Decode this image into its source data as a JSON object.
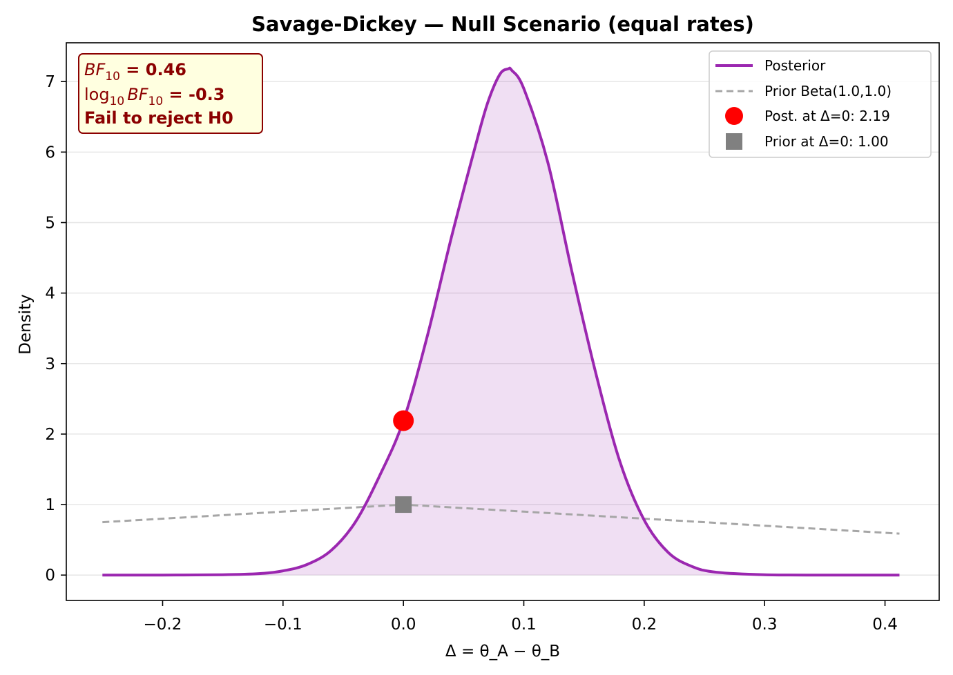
{
  "chart_data": {
    "type": "line",
    "title": "Savage-Dickey — Null Scenario (equal rates)",
    "xlabel": "Δ = θ_A − θ_B",
    "ylabel": "Density",
    "xlim": [
      -0.28,
      0.445
    ],
    "ylim": [
      -0.36,
      7.55
    ],
    "x_ticks": [
      -0.2,
      -0.1,
      0.0,
      0.1,
      0.2,
      0.3,
      0.4
    ],
    "x_tick_labels": [
      "−0.2",
      "−0.1",
      "0.0",
      "0.1",
      "0.2",
      "0.3",
      "0.4"
    ],
    "y_ticks": [
      0,
      1,
      2,
      3,
      4,
      5,
      6,
      7
    ],
    "y_tick_labels": [
      "0",
      "1",
      "2",
      "3",
      "4",
      "5",
      "6",
      "7"
    ],
    "grid": "horizontal",
    "legend_position": "top-right",
    "series": [
      {
        "name": "Posterior",
        "color": "#9b27b0",
        "style": "solid-filled",
        "x": [
          -0.25,
          -0.2,
          -0.15,
          -0.12,
          -0.1,
          -0.08,
          -0.06,
          -0.04,
          -0.02,
          0.0,
          0.02,
          0.04,
          0.06,
          0.07,
          0.08,
          0.087,
          0.09,
          0.1,
          0.12,
          0.14,
          0.16,
          0.18,
          0.2,
          0.22,
          0.24,
          0.26,
          0.3,
          0.35,
          0.412
        ],
        "y": [
          0.0,
          0.0,
          0.005,
          0.02,
          0.06,
          0.15,
          0.35,
          0.75,
          1.4,
          2.19,
          3.4,
          4.8,
          6.1,
          6.7,
          7.1,
          7.18,
          7.16,
          6.9,
          5.85,
          4.3,
          2.85,
          1.6,
          0.78,
          0.32,
          0.12,
          0.04,
          0.005,
          0.0,
          0.0
        ]
      },
      {
        "name": "Prior Beta(1.0,1.0)",
        "color": "#a6a6a6",
        "style": "dashed",
        "x": [
          -0.25,
          -0.2,
          -0.1,
          0.0,
          0.1,
          0.2,
          0.3,
          0.412
        ],
        "y": [
          0.75,
          0.8,
          0.9,
          1.0,
          0.9,
          0.8,
          0.7,
          0.588
        ]
      }
    ],
    "points": [
      {
        "name": "Post. at Δ=0: 2.19",
        "x": 0.0,
        "y": 2.19,
        "color": "#ff0000",
        "marker": "circle"
      },
      {
        "name": "Prior at Δ=0: 1.00",
        "x": 0.0,
        "y": 1.0,
        "color": "#808080",
        "marker": "square"
      }
    ],
    "annotation": {
      "line1_math": "BF",
      "line1_sub": "10",
      "line1_value": " = 0.46",
      "line2_log": "log",
      "line2_log_sub": "10",
      "line2_math": "BF",
      "line2_sub": "10",
      "line2_value": " = -0.3",
      "line3": "Fail to reject H0",
      "position": "top-left",
      "bg_color": "#ffffe0",
      "border_color": "#8b0000"
    }
  }
}
